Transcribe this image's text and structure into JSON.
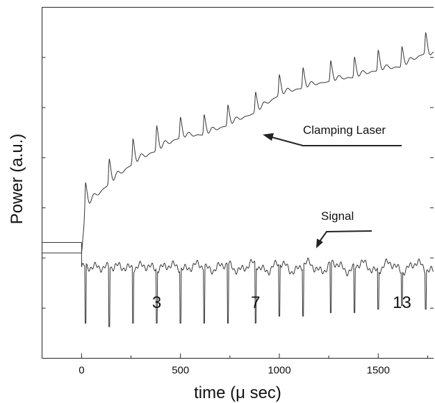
{
  "chart_data": {
    "type": "line",
    "title": "",
    "xlabel": "time (μ sec)",
    "ylabel": "Power (a.u.)",
    "xlim": [
      -200,
      1780
    ],
    "ylim": [
      0,
      1
    ],
    "x_ticks": [
      0,
      500,
      1000,
      1500
    ],
    "x_tick_labels": [
      "0",
      "500",
      "1000",
      "1500"
    ],
    "grid": false,
    "y_tick_labels_shown": false,
    "series": [
      {
        "name": "Clamping Laser",
        "pulse_times": [
          20,
          140,
          260,
          380,
          500,
          620,
          740,
          880,
          1000,
          1120,
          1260,
          1380,
          1500,
          1620,
          1740
        ],
        "x": [
          -200,
          0,
          0,
          20,
          140,
          260,
          380,
          500,
          620,
          740,
          880,
          1000,
          1120,
          1260,
          1380,
          1500,
          1620,
          1740,
          1780
        ],
        "y": [
          0.33,
          0.33,
          0.36,
          0.49,
          0.56,
          0.62,
          0.66,
          0.7,
          0.71,
          0.74,
          0.78,
          0.83,
          0.85,
          0.87,
          0.88,
          0.9,
          0.91,
          0.95,
          0.94
        ]
      },
      {
        "name": "Signal",
        "pulse_times": [
          20,
          140,
          260,
          380,
          500,
          620,
          740,
          880,
          1000,
          1120,
          1260,
          1380,
          1500,
          1620,
          1740
        ],
        "x": [
          -200,
          0,
          0,
          20,
          140,
          260,
          380,
          500,
          620,
          740,
          880,
          1000,
          1120,
          1260,
          1380,
          1500,
          1620,
          1740,
          1780
        ],
        "y": [
          0.3,
          0.3,
          0.28,
          0.1,
          0.09,
          0.1,
          0.1,
          0.1,
          0.1,
          0.1,
          0.1,
          0.12,
          0.12,
          0.13,
          0.13,
          0.14,
          0.15,
          0.14,
          0.16
        ]
      }
    ],
    "annotations": [
      {
        "text": "Clamping Laser",
        "points_to": "Clamping Laser"
      },
      {
        "text": "Signal",
        "points_to": "Signal"
      },
      {
        "text": "3",
        "x": 380
      },
      {
        "text": "7",
        "x": 880
      },
      {
        "text": "13",
        "x": 1620
      }
    ]
  }
}
